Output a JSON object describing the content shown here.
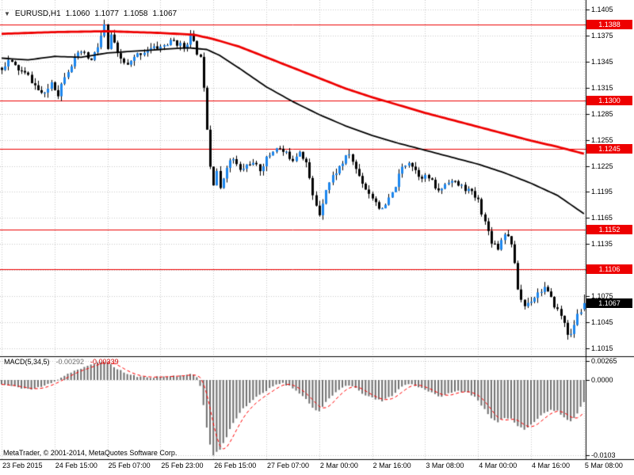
{
  "window": {
    "symbol_info": {
      "icon": "▼",
      "symbol": "EURUSD,H1",
      "open": "1.1060",
      "high": "1.1077",
      "low": "1.1058",
      "close": "1.1067"
    },
    "copyright": "MetaTrader, © 2001-2014, MetaQuotes Software Corp."
  },
  "colors": {
    "background": "#ffffff",
    "bull": "#1c86ee",
    "bear": "#000000",
    "wick": "#000000",
    "grid": "#c9c9c9",
    "level_line": "#ee0000",
    "level_label_bg": "#ee0000",
    "current_label_bg": "#000000",
    "ma_slow": "#ee0000",
    "ma_fast": "#000000",
    "histogram": "#6f6f6f",
    "signal": "#ff0000",
    "axis_line": "#000000",
    "text": "#000000"
  },
  "chart_data": [
    {
      "type": "candlestick",
      "symbol": "EURUSD",
      "timeframe": "H1",
      "n_bars": 177,
      "bars_per_label": 16,
      "x_labels": [
        "23 Feb 2015",
        "24 Feb 15:00",
        "25 Feb 07:00",
        "25 Feb 23:00",
        "26 Feb 15:00",
        "27 Feb 07:00",
        "2 Mar 00:00",
        "2 Mar 16:00",
        "3 Mar 08:00",
        "4 Mar 00:00",
        "4 Mar 16:00",
        "5 Mar 08:00"
      ],
      "y_ticks": [
        "1.1405",
        "1.1375",
        "1.1345",
        "1.1315",
        "1.1285",
        "1.1255",
        "1.1225",
        "1.1195",
        "1.1165",
        "1.1135",
        "1.1105",
        "1.1075",
        "1.1045",
        "1.1015"
      ],
      "ylim": [
        1.1015,
        1.1405
      ],
      "levels": [
        {
          "label": "1.1388",
          "price": 1.1388
        },
        {
          "label": "1.1300",
          "price": 1.13
        },
        {
          "label": "1.1245",
          "price": 1.1245
        },
        {
          "label": "1.1152",
          "price": 1.1152
        },
        {
          "label": "1.1106",
          "price": 1.1106
        }
      ],
      "current_price": {
        "label": "1.1067",
        "price": 1.1067
      },
      "last_bar": {
        "open": 1.106,
        "high": 1.1077,
        "low": 1.1058,
        "close": 1.1067
      },
      "close_waypoints": [
        [
          0,
          1.1338
        ],
        [
          2,
          1.1346
        ],
        [
          5,
          1.1336
        ],
        [
          8,
          1.1328
        ],
        [
          11,
          1.1312
        ],
        [
          13,
          1.1306
        ],
        [
          15,
          1.1322
        ],
        [
          17,
          1.1308
        ],
        [
          19,
          1.133
        ],
        [
          22,
          1.1348
        ],
        [
          24,
          1.1356
        ],
        [
          27,
          1.1346
        ],
        [
          29,
          1.1362
        ],
        [
          31,
          1.1386
        ],
        [
          32,
          1.1358
        ],
        [
          33,
          1.1376
        ],
        [
          35,
          1.1352
        ],
        [
          38,
          1.134
        ],
        [
          41,
          1.1353
        ],
        [
          44,
          1.1359
        ],
        [
          48,
          1.1362
        ],
        [
          52,
          1.1369
        ],
        [
          55,
          1.1361
        ],
        [
          57,
          1.1375
        ],
        [
          59,
          1.1356
        ],
        [
          60,
          1.1348
        ],
        [
          61,
          1.1318
        ],
        [
          62,
          1.127
        ],
        [
          63,
          1.1226
        ],
        [
          64,
          1.1206
        ],
        [
          65,
          1.122
        ],
        [
          66,
          1.1197
        ],
        [
          68,
          1.1226
        ],
        [
          70,
          1.1233
        ],
        [
          72,
          1.1219
        ],
        [
          75,
          1.1229
        ],
        [
          78,
          1.1221
        ],
        [
          80,
          1.1233
        ],
        [
          83,
          1.1247
        ],
        [
          85,
          1.1241
        ],
        [
          88,
          1.1233
        ],
        [
          90,
          1.1243
        ],
        [
          92,
          1.1229
        ],
        [
          94,
          1.119
        ],
        [
          96,
          1.117
        ],
        [
          98,
          1.1199
        ],
        [
          100,
          1.1213
        ],
        [
          103,
          1.1229
        ],
        [
          105,
          1.1239
        ],
        [
          107,
          1.1221
        ],
        [
          110,
          1.1199
        ],
        [
          113,
          1.1184
        ],
        [
          115,
          1.1173
        ],
        [
          118,
          1.1193
        ],
        [
          121,
          1.1223
        ],
        [
          123,
          1.1231
        ],
        [
          126,
          1.1215
        ],
        [
          129,
          1.1211
        ],
        [
          132,
          1.1195
        ],
        [
          135,
          1.1209
        ],
        [
          138,
          1.1203
        ],
        [
          141,
          1.1197
        ],
        [
          144,
          1.1185
        ],
        [
          146,
          1.116
        ],
        [
          148,
          1.1139
        ],
        [
          150,
          1.1131
        ],
        [
          152,
          1.1149
        ],
        [
          154,
          1.1137
        ],
        [
          155,
          1.111
        ],
        [
          156,
          1.1084
        ],
        [
          157,
          1.1071
        ],
        [
          158,
          1.1064
        ],
        [
          160,
          1.1071
        ],
        [
          162,
          1.1079
        ],
        [
          164,
          1.1085
        ],
        [
          166,
          1.1071
        ],
        [
          168,
          1.1059
        ],
        [
          170,
          1.1045
        ],
        [
          171,
          1.1033
        ],
        [
          172,
          1.1029
        ],
        [
          173,
          1.1043
        ],
        [
          174,
          1.1053
        ],
        [
          175,
          1.1058
        ],
        [
          176,
          1.1067
        ]
      ],
      "ma_slow_waypoints": [
        [
          0,
          1.1377
        ],
        [
          16,
          1.1379
        ],
        [
          32,
          1.138
        ],
        [
          48,
          1.1378
        ],
        [
          58,
          1.1376
        ],
        [
          64,
          1.1371
        ],
        [
          72,
          1.1362
        ],
        [
          80,
          1.135
        ],
        [
          88,
          1.1338
        ],
        [
          96,
          1.1326
        ],
        [
          104,
          1.1314
        ],
        [
          112,
          1.1304
        ],
        [
          120,
          1.1295
        ],
        [
          128,
          1.1286
        ],
        [
          136,
          1.1278
        ],
        [
          144,
          1.127
        ],
        [
          152,
          1.1262
        ],
        [
          160,
          1.1254
        ],
        [
          168,
          1.1247
        ],
        [
          176,
          1.1239
        ]
      ],
      "ma_fast_waypoints": [
        [
          0,
          1.1349
        ],
        [
          8,
          1.1347
        ],
        [
          16,
          1.1351
        ],
        [
          24,
          1.135
        ],
        [
          32,
          1.1355
        ],
        [
          40,
          1.1357
        ],
        [
          48,
          1.1359
        ],
        [
          56,
          1.1361
        ],
        [
          62,
          1.1359
        ],
        [
          66,
          1.1352
        ],
        [
          72,
          1.1337
        ],
        [
          80,
          1.1316
        ],
        [
          88,
          1.1299
        ],
        [
          96,
          1.1284
        ],
        [
          104,
          1.1271
        ],
        [
          112,
          1.126
        ],
        [
          120,
          1.1251
        ],
        [
          128,
          1.1243
        ],
        [
          136,
          1.1235
        ],
        [
          144,
          1.1227
        ],
        [
          152,
          1.1217
        ],
        [
          160,
          1.1205
        ],
        [
          168,
          1.1191
        ],
        [
          176,
          1.117
        ]
      ]
    },
    {
      "type": "bar",
      "title": "MACD(5,34,5)",
      "current_macd": "-0.00292",
      "current_signal": "-0.00339",
      "y_ticks": [
        "0.00265",
        "0.0000",
        "-0.0103"
      ],
      "ylim": [
        -0.0103,
        0.00265
      ],
      "signal_period": 5,
      "macd_waypoints": [
        [
          0,
          -0.0006
        ],
        [
          5,
          -0.001
        ],
        [
          9,
          -0.0013
        ],
        [
          13,
          -0.0008
        ],
        [
          17,
          0.0001
        ],
        [
          21,
          0.0011
        ],
        [
          25,
          0.0017
        ],
        [
          29,
          0.0024
        ],
        [
          31,
          0.0026
        ],
        [
          34,
          0.0018
        ],
        [
          38,
          0.0008
        ],
        [
          42,
          0.0004
        ],
        [
          46,
          0.0004
        ],
        [
          50,
          0.0005
        ],
        [
          54,
          0.0006
        ],
        [
          57,
          0.0008
        ],
        [
          59,
          0.0004
        ],
        [
          60,
          -0.0008
        ],
        [
          61,
          -0.0034
        ],
        [
          62,
          -0.0064
        ],
        [
          63,
          -0.0089
        ],
        [
          64,
          -0.0103
        ],
        [
          66,
          -0.0095
        ],
        [
          68,
          -0.0078
        ],
        [
          70,
          -0.0058
        ],
        [
          73,
          -0.0039
        ],
        [
          76,
          -0.0027
        ],
        [
          80,
          -0.0015
        ],
        [
          83,
          -0.0006
        ],
        [
          85,
          -0.0004
        ],
        [
          88,
          -0.0011
        ],
        [
          91,
          -0.0021
        ],
        [
          94,
          -0.0038
        ],
        [
          96,
          -0.0043
        ],
        [
          98,
          -0.0031
        ],
        [
          101,
          -0.0017
        ],
        [
          104,
          -0.0007
        ],
        [
          106,
          -0.0009
        ],
        [
          109,
          -0.0018
        ],
        [
          112,
          -0.0025
        ],
        [
          115,
          -0.0029
        ],
        [
          118,
          -0.0021
        ],
        [
          121,
          -0.0009
        ],
        [
          123,
          -0.0005
        ],
        [
          126,
          -0.0009
        ],
        [
          129,
          -0.0015
        ],
        [
          132,
          -0.0023
        ],
        [
          135,
          -0.0019
        ],
        [
          138,
          -0.0015
        ],
        [
          141,
          -0.0017
        ],
        [
          144,
          -0.0027
        ],
        [
          146,
          -0.0041
        ],
        [
          148,
          -0.0053
        ],
        [
          150,
          -0.0059
        ],
        [
          152,
          -0.0051
        ],
        [
          154,
          -0.0053
        ],
        [
          156,
          -0.0063
        ],
        [
          158,
          -0.0067
        ],
        [
          160,
          -0.0061
        ],
        [
          162,
          -0.0053
        ],
        [
          164,
          -0.0045
        ],
        [
          166,
          -0.0041
        ],
        [
          168,
          -0.0043
        ],
        [
          170,
          -0.0051
        ],
        [
          172,
          -0.0057
        ],
        [
          174,
          -0.0046
        ],
        [
          175,
          -0.0037
        ],
        [
          176,
          -0.0029
        ]
      ]
    }
  ]
}
